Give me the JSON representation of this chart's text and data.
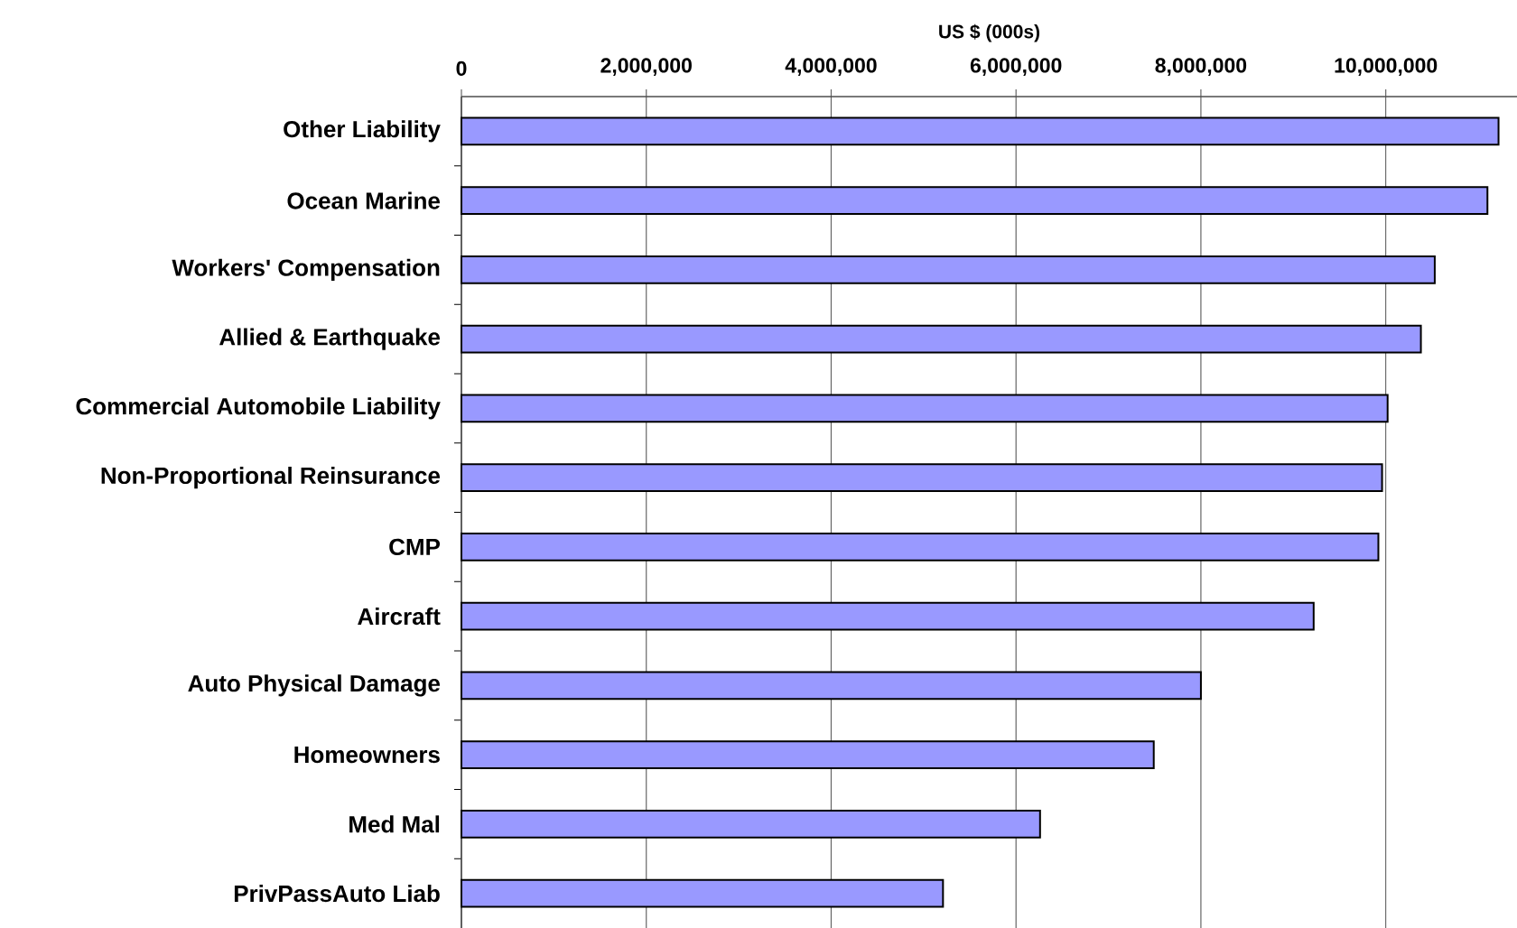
{
  "chart_data": {
    "type": "bar",
    "orientation": "horizontal",
    "xlabel": "US $ (000s)",
    "categories": [
      "Other Liability",
      "Ocean Marine",
      "Workers' Compensation",
      "Allied & Earthquake",
      "Commercial Automobile Liability",
      "Non-Proportional Reinsurance",
      "CMP",
      "Aircraft",
      "Auto Physical Damage",
      "Homeowners",
      "Med Mal",
      "PrivPassAuto Liab"
    ],
    "values": [
      11220000,
      11100000,
      10530000,
      10380000,
      10020000,
      9960000,
      9920000,
      9220000,
      8000000,
      7490000,
      6260000,
      5210000
    ],
    "color": "#9999ff",
    "xlim": [
      0,
      11420000
    ],
    "xticks": [
      0,
      {
        "value": 2000000,
        "label": "2,000,000"
      },
      {
        "value": 4000000,
        "label": "4,000,000"
      },
      {
        "value": 6000000,
        "label": "6,000,000"
      },
      {
        "value": 8000000,
        "label": "8,000,000"
      },
      {
        "value": 10000000,
        "label": "10,000,000"
      }
    ],
    "grid": "x"
  }
}
